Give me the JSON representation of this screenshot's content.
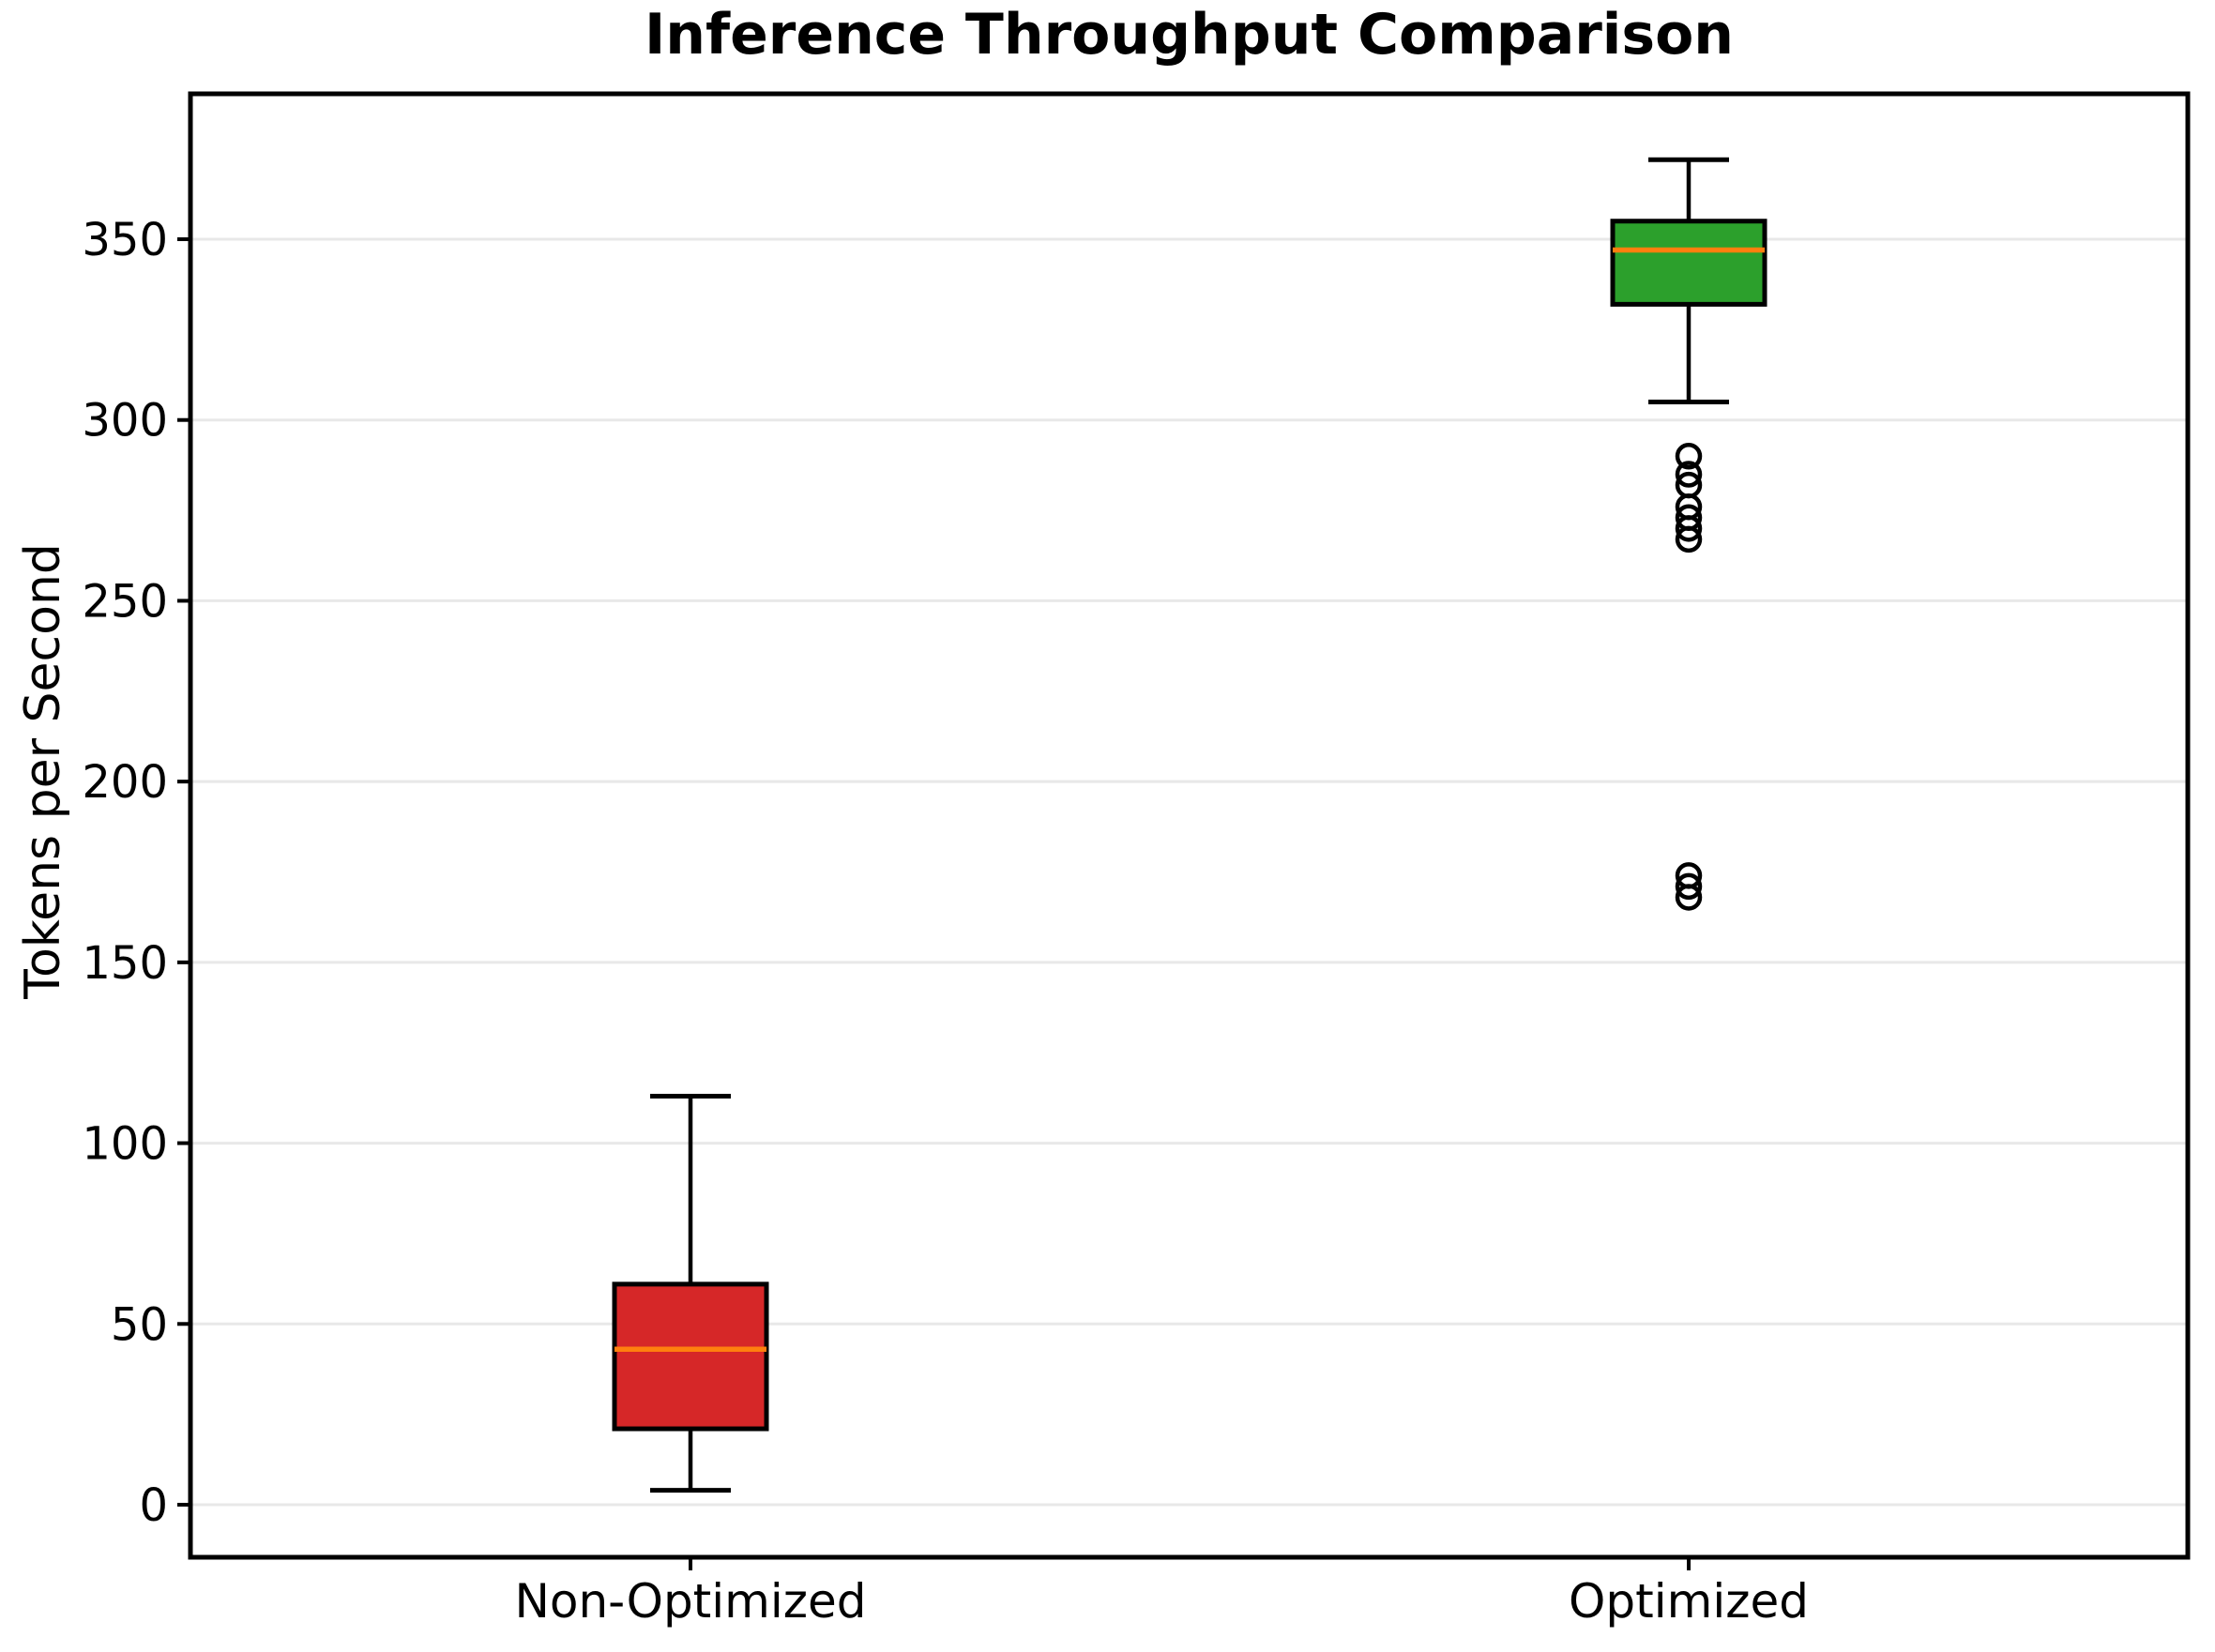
{
  "title": "Inference Throughput Comparison",
  "y_axis": {
    "label": "Tokens per Second",
    "ticks": [
      0,
      50,
      100,
      150,
      200,
      250,
      300,
      350
    ]
  },
  "x_axis": {
    "categories": [
      "Non-Optimized",
      "Optimized"
    ]
  },
  "colors": {
    "non_optimized_fill": "#d62728",
    "optimized_fill": "#2ca02c",
    "median_line": "#ff7f0e",
    "box_edge": "#000000",
    "gridline": "#e8e8e8",
    "spine": "#000000",
    "background": "#ffffff"
  },
  "chart_data": {
    "type": "box",
    "title": "Inference Throughput Comparison",
    "xlabel": "",
    "ylabel": "Tokens per Second",
    "categories": [
      "Non-Optimized",
      "Optimized"
    ],
    "ylim": [
      -15,
      390
    ],
    "grid": "horizontal",
    "legend": "none",
    "series": [
      {
        "name": "Non-Optimized",
        "whisker_low": 4,
        "q1": 21,
        "median": 43,
        "q3": 61,
        "whisker_high": 113,
        "outliers": [],
        "fill_color": "#d62728"
      },
      {
        "name": "Optimized",
        "whisker_low": 305,
        "q1": 332,
        "median": 347,
        "q3": 355,
        "whisker_high": 372,
        "outliers": [
          290,
          285,
          282,
          276,
          273,
          270,
          267,
          174,
          171,
          168
        ],
        "fill_color": "#2ca02c"
      }
    ]
  }
}
